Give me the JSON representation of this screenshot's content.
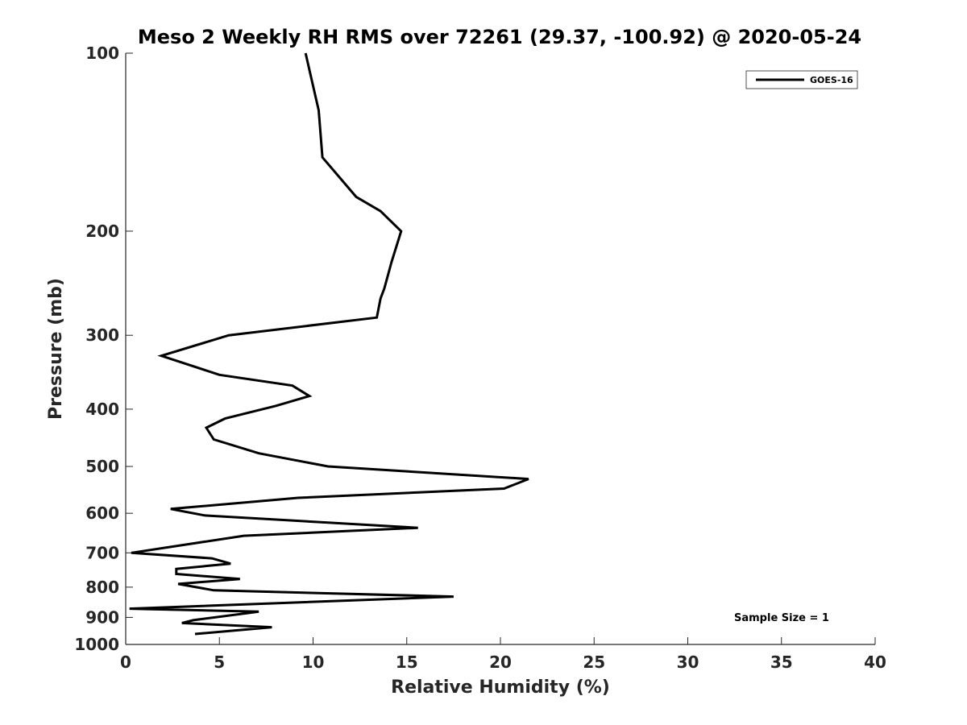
{
  "chart_data": {
    "type": "line",
    "title": "Meso 2 Weekly RH RMS over 72261 (29.37, -100.92) @ 2020-05-24",
    "xlabel": "Relative Humidity (%)",
    "ylabel": "Pressure (mb)",
    "xlim": [
      0,
      40
    ],
    "ylim": [
      1000,
      100
    ],
    "y_scale": "log",
    "y_direction": "reversed",
    "x_ticks": [
      0,
      5,
      10,
      15,
      20,
      25,
      30,
      35,
      40
    ],
    "y_ticks": [
      100,
      200,
      300,
      400,
      500,
      600,
      700,
      800,
      900,
      1000
    ],
    "grid": false,
    "legend_position": "top-right",
    "annotation": "Sample Size = 1",
    "series": [
      {
        "name": "GOES-16",
        "color": "#000000",
        "x": [
          9.6,
          10.3,
          10.5,
          12.3,
          13.6,
          14.7,
          14.2,
          13.8,
          13.6,
          13.4,
          5.5,
          1.9,
          5.0,
          8.9,
          9.8,
          8.0,
          5.3,
          4.3,
          4.7,
          7.1,
          10.8,
          21.5,
          20.2,
          9.2,
          2.4,
          4.2,
          15.6,
          6.3,
          0.3,
          4.6,
          5.6,
          2.7,
          2.7,
          6.1,
          2.8,
          4.7,
          17.5,
          0.2,
          7.1,
          3.6,
          3.0,
          7.8,
          3.7
        ],
        "y": [
          100,
          125,
          150,
          175,
          185,
          200,
          225,
          250,
          260,
          280,
          300,
          325,
          350,
          365,
          380,
          395,
          415,
          430,
          450,
          475,
          500,
          525,
          545,
          565,
          590,
          605,
          635,
          655,
          700,
          715,
          730,
          745,
          760,
          775,
          790,
          810,
          830,
          870,
          880,
          910,
          920,
          935,
          960
        ]
      }
    ]
  }
}
